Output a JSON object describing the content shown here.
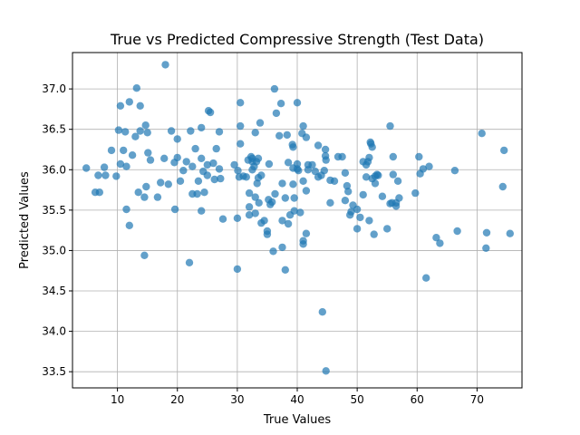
{
  "chart_data": {
    "type": "scatter",
    "title": "True vs Predicted Compressive Strength (Test Data)",
    "xlabel": "True Values",
    "ylabel": "Predicted Values",
    "xlim": [
      2.5,
      77.5
    ],
    "ylim": [
      33.3,
      37.45
    ],
    "xticks": [
      10,
      20,
      30,
      40,
      50,
      60,
      70
    ],
    "yticks": [
      33.5,
      34.0,
      34.5,
      35.0,
      35.5,
      36.0,
      36.5,
      37.0
    ],
    "ytick_labels": [
      "33.5",
      "34.0",
      "34.5",
      "35.0",
      "35.5",
      "36.0",
      "36.5",
      "37.0"
    ],
    "grid": true,
    "marker_color": "#1f77b4",
    "marker_alpha": 0.7,
    "points": [
      [
        4.8,
        36.02
      ],
      [
        6.3,
        35.72
      ],
      [
        6.8,
        35.93
      ],
      [
        7.0,
        35.72
      ],
      [
        7.8,
        36.03
      ],
      [
        8.0,
        35.93
      ],
      [
        9.0,
        36.24
      ],
      [
        9.8,
        35.92
      ],
      [
        10.2,
        36.49
      ],
      [
        10.5,
        36.79
      ],
      [
        10.5,
        36.07
      ],
      [
        11.0,
        36.24
      ],
      [
        11.3,
        36.47
      ],
      [
        11.5,
        36.04
      ],
      [
        11.5,
        35.51
      ],
      [
        12.0,
        36.84
      ],
      [
        12.0,
        35.31
      ],
      [
        12.5,
        36.18
      ],
      [
        13.0,
        36.41
      ],
      [
        13.2,
        37.01
      ],
      [
        13.5,
        35.72
      ],
      [
        13.8,
        36.48
      ],
      [
        13.8,
        36.79
      ],
      [
        14.5,
        35.66
      ],
      [
        14.5,
        34.94
      ],
      [
        14.7,
        36.55
      ],
      [
        14.8,
        35.79
      ],
      [
        15.0,
        36.46
      ],
      [
        15.1,
        36.21
      ],
      [
        15.5,
        36.12
      ],
      [
        16.7,
        35.66
      ],
      [
        17.2,
        35.84
      ],
      [
        17.8,
        36.14
      ],
      [
        18.0,
        37.3
      ],
      [
        18.5,
        35.82
      ],
      [
        19.0,
        36.48
      ],
      [
        19.5,
        36.09
      ],
      [
        19.6,
        35.51
      ],
      [
        20.0,
        36.38
      ],
      [
        20.0,
        36.15
      ],
      [
        20.5,
        35.86
      ],
      [
        21.0,
        35.99
      ],
      [
        21.5,
        36.1
      ],
      [
        22.0,
        34.85
      ],
      [
        22.2,
        36.48
      ],
      [
        22.5,
        36.04
      ],
      [
        22.5,
        35.7
      ],
      [
        23.0,
        36.26
      ],
      [
        23.3,
        35.7
      ],
      [
        23.5,
        35.86
      ],
      [
        24.0,
        36.52
      ],
      [
        24.0,
        36.14
      ],
      [
        24.0,
        35.49
      ],
      [
        24.3,
        35.98
      ],
      [
        24.5,
        35.72
      ],
      [
        25.0,
        36.06
      ],
      [
        25.0,
        35.93
      ],
      [
        25.2,
        36.73
      ],
      [
        25.5,
        36.71
      ],
      [
        26.0,
        36.08
      ],
      [
        26.2,
        35.88
      ],
      [
        26.5,
        36.26
      ],
      [
        27.0,
        36.47
      ],
      [
        27.0,
        36.01
      ],
      [
        27.2,
        35.89
      ],
      [
        27.6,
        35.39
      ],
      [
        29.5,
        36.06
      ],
      [
        30.0,
        34.77
      ],
      [
        30.0,
        35.4
      ],
      [
        30.1,
        35.99
      ],
      [
        30.3,
        35.91
      ],
      [
        30.5,
        36.83
      ],
      [
        30.5,
        36.54
      ],
      [
        30.5,
        36.32
      ],
      [
        31.0,
        35.92
      ],
      [
        31.5,
        35.91
      ],
      [
        31.8,
        36.12
      ],
      [
        32.0,
        35.71
      ],
      [
        32.0,
        35.44
      ],
      [
        32.0,
        35.54
      ],
      [
        32.3,
        36.16
      ],
      [
        32.5,
        36.14
      ],
      [
        32.5,
        36.1
      ],
      [
        32.5,
        36.0
      ],
      [
        32.8,
        36.04
      ],
      [
        33.0,
        36.46
      ],
      [
        33.0,
        35.66
      ],
      [
        33.0,
        35.46
      ],
      [
        33.2,
        36.1
      ],
      [
        33.3,
        35.83
      ],
      [
        33.5,
        36.14
      ],
      [
        33.5,
        35.9
      ],
      [
        33.6,
        35.59
      ],
      [
        33.8,
        36.58
      ],
      [
        34.0,
        35.93
      ],
      [
        34.0,
        35.34
      ],
      [
        34.5,
        35.37
      ],
      [
        35.0,
        35.24
      ],
      [
        35.0,
        35.2
      ],
      [
        35.2,
        35.63
      ],
      [
        35.3,
        36.07
      ],
      [
        35.5,
        35.57
      ],
      [
        35.8,
        35.6
      ],
      [
        36.0,
        34.99
      ],
      [
        36.2,
        37.0
      ],
      [
        36.3,
        35.7
      ],
      [
        36.5,
        36.7
      ],
      [
        37.0,
        36.42
      ],
      [
        37.3,
        36.82
      ],
      [
        37.5,
        35.83
      ],
      [
        37.5,
        35.37
      ],
      [
        37.5,
        35.04
      ],
      [
        38.0,
        34.76
      ],
      [
        38.0,
        35.65
      ],
      [
        38.3,
        36.43
      ],
      [
        38.5,
        35.33
      ],
      [
        38.5,
        36.09
      ],
      [
        38.8,
        35.44
      ],
      [
        39.2,
        36.31
      ],
      [
        39.3,
        36.28
      ],
      [
        39.3,
        36.02
      ],
      [
        39.3,
        35.82
      ],
      [
        39.5,
        35.65
      ],
      [
        39.5,
        35.49
      ],
      [
        40.0,
        36.83
      ],
      [
        40.0,
        36.07
      ],
      [
        40.0,
        36.01
      ],
      [
        40.2,
        35.99
      ],
      [
        40.5,
        35.47
      ],
      [
        40.8,
        36.45
      ],
      [
        41.0,
        36.54
      ],
      [
        41.0,
        35.86
      ],
      [
        41.0,
        35.08
      ],
      [
        41.0,
        35.12
      ],
      [
        41.5,
        36.4
      ],
      [
        41.5,
        35.74
      ],
      [
        41.5,
        35.21
      ],
      [
        41.8,
        36.06
      ],
      [
        41.8,
        36.0
      ],
      [
        42.5,
        36.06
      ],
      [
        43.0,
        35.98
      ],
      [
        43.5,
        35.91
      ],
      [
        43.5,
        36.3
      ],
      [
        44.0,
        35.93
      ],
      [
        44.2,
        34.24
      ],
      [
        44.5,
        35.99
      ],
      [
        44.7,
        36.25
      ],
      [
        44.7,
        36.17
      ],
      [
        44.8,
        36.12
      ],
      [
        44.8,
        33.51
      ],
      [
        45.5,
        35.59
      ],
      [
        45.5,
        35.87
      ],
      [
        46.2,
        35.86
      ],
      [
        46.8,
        36.16
      ],
      [
        47.5,
        36.16
      ],
      [
        48.0,
        35.62
      ],
      [
        48.0,
        35.96
      ],
      [
        48.3,
        35.8
      ],
      [
        48.5,
        35.73
      ],
      [
        48.8,
        35.44
      ],
      [
        49.0,
        35.48
      ],
      [
        49.3,
        35.56
      ],
      [
        50.0,
        35.51
      ],
      [
        50.0,
        35.27
      ],
      [
        50.5,
        35.41
      ],
      [
        51.0,
        36.1
      ],
      [
        51.0,
        35.69
      ],
      [
        51.5,
        36.06
      ],
      [
        51.5,
        35.91
      ],
      [
        51.8,
        36.1
      ],
      [
        52.0,
        36.15
      ],
      [
        52.0,
        35.37
      ],
      [
        52.2,
        36.34
      ],
      [
        52.3,
        36.32
      ],
      [
        52.5,
        36.28
      ],
      [
        52.5,
        35.89
      ],
      [
        52.8,
        35.2
      ],
      [
        53.0,
        35.92
      ],
      [
        53.0,
        35.83
      ],
      [
        53.3,
        35.94
      ],
      [
        53.5,
        35.93
      ],
      [
        54.2,
        35.67
      ],
      [
        55.0,
        35.27
      ],
      [
        55.5,
        36.54
      ],
      [
        55.5,
        35.58
      ],
      [
        55.8,
        35.59
      ],
      [
        56.0,
        36.16
      ],
      [
        56.0,
        35.94
      ],
      [
        56.5,
        35.59
      ],
      [
        56.5,
        35.55
      ],
      [
        56.8,
        35.86
      ],
      [
        57.0,
        35.65
      ],
      [
        59.7,
        35.71
      ],
      [
        60.3,
        36.16
      ],
      [
        60.5,
        35.95
      ],
      [
        61.0,
        36.01
      ],
      [
        61.5,
        34.66
      ],
      [
        62.0,
        36.04
      ],
      [
        63.2,
        35.16
      ],
      [
        63.8,
        35.09
      ],
      [
        66.3,
        35.99
      ],
      [
        66.7,
        35.24
      ],
      [
        70.8,
        36.45
      ],
      [
        71.5,
        35.03
      ],
      [
        71.6,
        35.22
      ],
      [
        74.3,
        35.79
      ],
      [
        74.5,
        36.24
      ],
      [
        75.5,
        35.21
      ]
    ]
  }
}
